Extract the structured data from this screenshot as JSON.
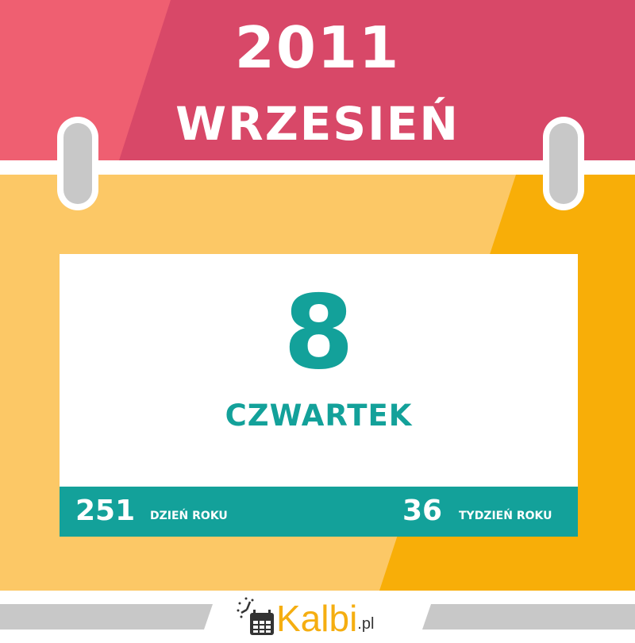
{
  "header": {
    "year": "2011",
    "month": "WRZESIEŃ"
  },
  "card": {
    "day": "8",
    "weekday": "CZWARTEK",
    "day_of_year": "251",
    "day_of_year_label": "DZIEŃ ROKU",
    "week_of_year": "36",
    "week_of_year_label": "TYDZIEŃ ROKU"
  },
  "logo": {
    "brand": "Kalbi",
    "tld": ".pl",
    "icon": "calendar-clock-icon"
  },
  "colors": {
    "red_light": "#ef5f71",
    "red_dark": "#d84868",
    "yellow_light": "#fcc866",
    "yellow_dark": "#f8ae08",
    "teal": "#13a19a",
    "grey": "#c8c8c8"
  }
}
